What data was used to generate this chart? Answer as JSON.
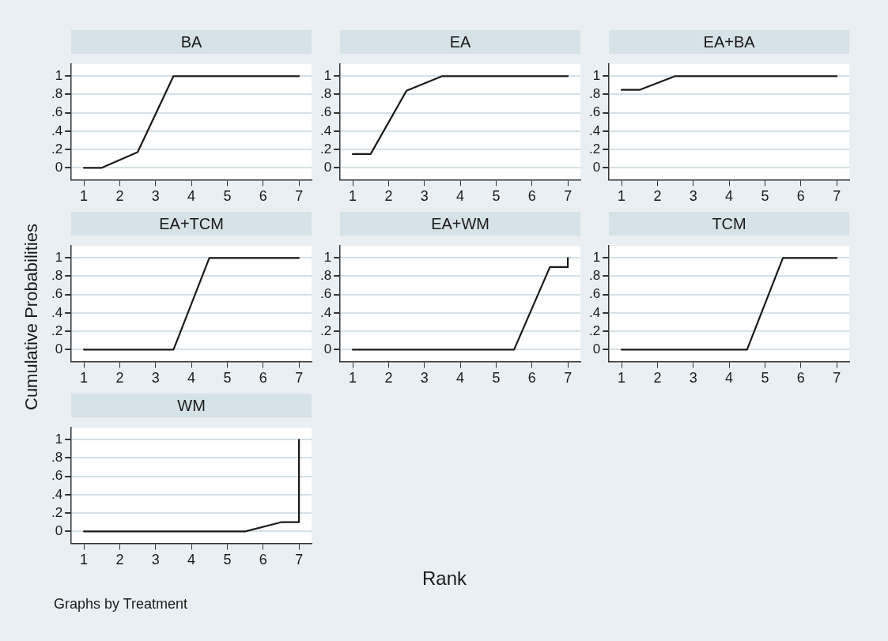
{
  "chart_data": [
    {
      "type": "line",
      "title": "BA",
      "xlim": [
        0.65,
        7.35
      ],
      "xticks": [
        1,
        2,
        3,
        4,
        5,
        6,
        7
      ],
      "ylim": [
        -0.13,
        1.13
      ],
      "yticks": [
        {
          "value": 0,
          "label": "0"
        },
        {
          "value": 0.2,
          "label": ".2"
        },
        {
          "value": 0.4,
          "label": ".4"
        },
        {
          "value": 0.6,
          "label": ".6"
        },
        {
          "value": 0.8,
          "label": ".8"
        },
        {
          "value": 1,
          "label": "1"
        }
      ],
      "grid": "y",
      "marker": "none",
      "legend": false,
      "series": [
        {
          "color": "#1a1a1a",
          "x": [
            1,
            1.5,
            2.5,
            3.5,
            4.5,
            5.5,
            6.5,
            7,
            7
          ],
          "values": [
            0,
            0,
            0.17,
            1,
            1,
            1,
            1,
            1,
            1
          ]
        }
      ]
    },
    {
      "type": "line",
      "title": "EA",
      "xlim": [
        0.65,
        7.35
      ],
      "xticks": [
        1,
        2,
        3,
        4,
        5,
        6,
        7
      ],
      "ylim": [
        -0.13,
        1.13
      ],
      "yticks": [
        {
          "value": 0,
          "label": "0"
        },
        {
          "value": 0.2,
          "label": ".2"
        },
        {
          "value": 0.4,
          "label": ".4"
        },
        {
          "value": 0.6,
          "label": ".6"
        },
        {
          "value": 0.8,
          "label": ".8"
        },
        {
          "value": 1,
          "label": "1"
        }
      ],
      "grid": "y",
      "marker": "none",
      "legend": false,
      "series": [
        {
          "color": "#1a1a1a",
          "x": [
            1,
            1.5,
            2.5,
            3.5,
            4.5,
            5.5,
            6.5,
            7,
            7
          ],
          "values": [
            0.15,
            0.15,
            0.84,
            1,
            1,
            1,
            1,
            1,
            1
          ]
        }
      ]
    },
    {
      "type": "line",
      "title": "EA+BA",
      "xlim": [
        0.65,
        7.35
      ],
      "xticks": [
        1,
        2,
        3,
        4,
        5,
        6,
        7
      ],
      "ylim": [
        -0.13,
        1.13
      ],
      "yticks": [
        {
          "value": 0,
          "label": "0"
        },
        {
          "value": 0.2,
          "label": ".2"
        },
        {
          "value": 0.4,
          "label": ".4"
        },
        {
          "value": 0.6,
          "label": ".6"
        },
        {
          "value": 0.8,
          "label": ".8"
        },
        {
          "value": 1,
          "label": "1"
        }
      ],
      "grid": "y",
      "marker": "none",
      "legend": false,
      "series": [
        {
          "color": "#1a1a1a",
          "x": [
            1,
            1.5,
            2.5,
            3.5,
            4.5,
            5.5,
            6.5,
            7,
            7
          ],
          "values": [
            0.85,
            0.85,
            1,
            1,
            1,
            1,
            1,
            1,
            1
          ]
        }
      ]
    },
    {
      "type": "line",
      "title": "EA+TCM",
      "ylabel": "Cumulative Probabilities",
      "xlim": [
        0.65,
        7.35
      ],
      "xticks": [
        1,
        2,
        3,
        4,
        5,
        6,
        7
      ],
      "ylim": [
        -0.13,
        1.13
      ],
      "yticks": [
        {
          "value": 0,
          "label": "0"
        },
        {
          "value": 0.2,
          "label": ".2"
        },
        {
          "value": 0.4,
          "label": ".4"
        },
        {
          "value": 0.6,
          "label": ".6"
        },
        {
          "value": 0.8,
          "label": ".8"
        },
        {
          "value": 1,
          "label": "1"
        }
      ],
      "grid": "y",
      "marker": "none",
      "legend": false,
      "series": [
        {
          "color": "#1a1a1a",
          "x": [
            1,
            1.5,
            2.5,
            3.5,
            4.5,
            5.5,
            6.5,
            7,
            7
          ],
          "values": [
            0,
            0,
            0,
            0,
            1,
            1,
            1,
            1,
            1
          ]
        }
      ]
    },
    {
      "type": "line",
      "title": "EA+WM",
      "xlabel": "Rank",
      "xlim": [
        0.65,
        7.35
      ],
      "xticks": [
        1,
        2,
        3,
        4,
        5,
        6,
        7
      ],
      "ylim": [
        -0.13,
        1.13
      ],
      "yticks": [
        {
          "value": 0,
          "label": "0"
        },
        {
          "value": 0.2,
          "label": ".2"
        },
        {
          "value": 0.4,
          "label": ".4"
        },
        {
          "value": 0.6,
          "label": ".6"
        },
        {
          "value": 0.8,
          "label": ".8"
        },
        {
          "value": 1,
          "label": "1"
        }
      ],
      "grid": "y",
      "marker": "none",
      "legend": false,
      "series": [
        {
          "color": "#1a1a1a",
          "x": [
            1,
            1.5,
            2.5,
            3.5,
            4.5,
            5.5,
            6.5,
            7,
            7
          ],
          "values": [
            0,
            0,
            0,
            0,
            0,
            0,
            0.9,
            0.9,
            1
          ]
        }
      ]
    },
    {
      "type": "line",
      "title": "TCM",
      "xlim": [
        0.65,
        7.35
      ],
      "xticks": [
        1,
        2,
        3,
        4,
        5,
        6,
        7
      ],
      "ylim": [
        -0.13,
        1.13
      ],
      "yticks": [
        {
          "value": 0,
          "label": "0"
        },
        {
          "value": 0.2,
          "label": ".2"
        },
        {
          "value": 0.4,
          "label": ".4"
        },
        {
          "value": 0.6,
          "label": ".6"
        },
        {
          "value": 0.8,
          "label": ".8"
        },
        {
          "value": 1,
          "label": "1"
        }
      ],
      "grid": "y",
      "marker": "none",
      "legend": false,
      "series": [
        {
          "color": "#1a1a1a",
          "x": [
            1,
            1.5,
            2.5,
            3.5,
            4.5,
            5.5,
            6.5,
            7,
            7
          ],
          "values": [
            0,
            0,
            0,
            0,
            0,
            1,
            1,
            1,
            1
          ]
        }
      ]
    },
    {
      "type": "line",
      "title": "WM",
      "annotations": [
        "Graphs by Treatment"
      ],
      "xlim": [
        0.65,
        7.35
      ],
      "xticks": [
        1,
        2,
        3,
        4,
        5,
        6,
        7
      ],
      "ylim": [
        -0.13,
        1.13
      ],
      "yticks": [
        {
          "value": 0,
          "label": "0"
        },
        {
          "value": 0.2,
          "label": ".2"
        },
        {
          "value": 0.4,
          "label": ".4"
        },
        {
          "value": 0.6,
          "label": ".6"
        },
        {
          "value": 0.8,
          "label": ".8"
        },
        {
          "value": 1,
          "label": "1"
        }
      ],
      "grid": "y",
      "marker": "none",
      "legend": false,
      "series": [
        {
          "color": "#1a1a1a",
          "x": [
            1,
            1.5,
            2.5,
            3.5,
            4.5,
            5.5,
            6.5,
            7,
            7
          ],
          "values": [
            0,
            0,
            0,
            0,
            0,
            0,
            0.1,
            0.1,
            1
          ]
        }
      ]
    }
  ]
}
